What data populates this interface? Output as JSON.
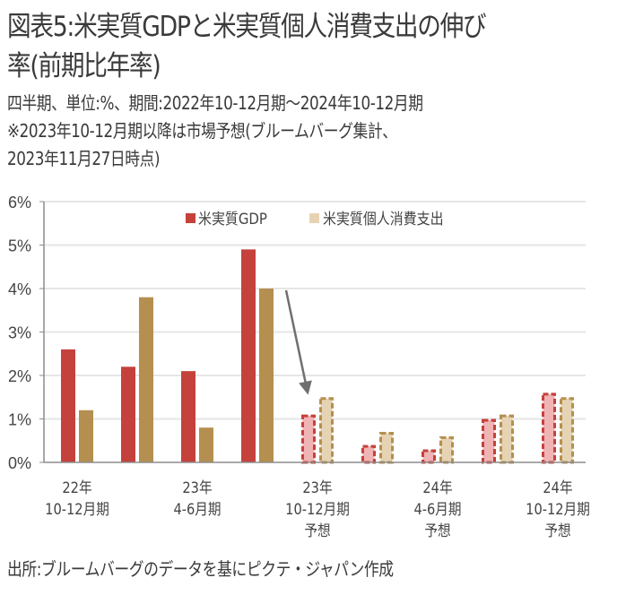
{
  "header": {
    "title_lines": [
      "図表5:米実質GDPと米実質個人消費支出の伸び",
      "率(前期比年率)"
    ],
    "subtitle_lines": [
      "四半期、単位:%、期間:2022年10-12月期～2024年10-12月期",
      "※2023年10-12月期以降は市場予想(ブルームバーグ集計、",
      "2023年11月27日時点)"
    ]
  },
  "footer": {
    "source": "出所:ブルームバーグのデータを基にピクテ・ジャパン作成"
  },
  "colors": {
    "gdp": "#c5413b",
    "pce": "#b58f4f",
    "gdp_forecast_fill": "#f0b4b4",
    "pce_forecast_fill": "#e6d3b4",
    "grid": "#e6e6e6",
    "axis": "#8c8c8c",
    "arrow": "#6f6f6f"
  },
  "chart_data": {
    "type": "bar",
    "title": "米実質GDPと米実質個人消費支出の伸び率(前期比年率)",
    "xlabel": "",
    "ylabel": "",
    "ylim": [
      0,
      6
    ],
    "yticks": [
      0,
      1,
      2,
      3,
      4,
      5,
      6
    ],
    "ytick_labels": [
      "0%",
      "1%",
      "2%",
      "3%",
      "4%",
      "5%",
      "6%"
    ],
    "grid": true,
    "legend_position": "top-center",
    "categories": [
      "2022Q4",
      "2023Q1",
      "2023Q2",
      "2023Q3",
      "2023Q4",
      "2024Q1",
      "2024Q2",
      "2024Q3",
      "2024Q4"
    ],
    "forecast_from_index": 4,
    "x_tick_labels": [
      {
        "category_index": 0,
        "lines": [
          "22年",
          "10-12月期"
        ]
      },
      {
        "category_index": 2,
        "lines": [
          "23年",
          "4-6月期"
        ]
      },
      {
        "category_index": 4,
        "lines": [
          "23年",
          "10-12月期",
          "予想"
        ]
      },
      {
        "category_index": 6,
        "lines": [
          "24年",
          "4-6月期",
          "予想"
        ]
      },
      {
        "category_index": 8,
        "lines": [
          "24年",
          "10-12月期",
          "予想"
        ]
      }
    ],
    "series": [
      {
        "name": "米実質GDP",
        "key": "gdp",
        "values": [
          2.6,
          2.2,
          2.1,
          4.9,
          1.1,
          0.4,
          0.3,
          1.0,
          1.6
        ]
      },
      {
        "name": "米実質個人消費支出",
        "key": "pce",
        "values": [
          1.2,
          3.8,
          0.8,
          4.0,
          1.5,
          0.7,
          0.6,
          1.1,
          1.5
        ]
      }
    ],
    "annotations": [
      {
        "type": "arrow",
        "from": {
          "category_index": 3,
          "series": "pce",
          "value": 4.0
        },
        "to": {
          "category_index": 4,
          "series": "pce",
          "value": 1.5
        }
      }
    ]
  }
}
